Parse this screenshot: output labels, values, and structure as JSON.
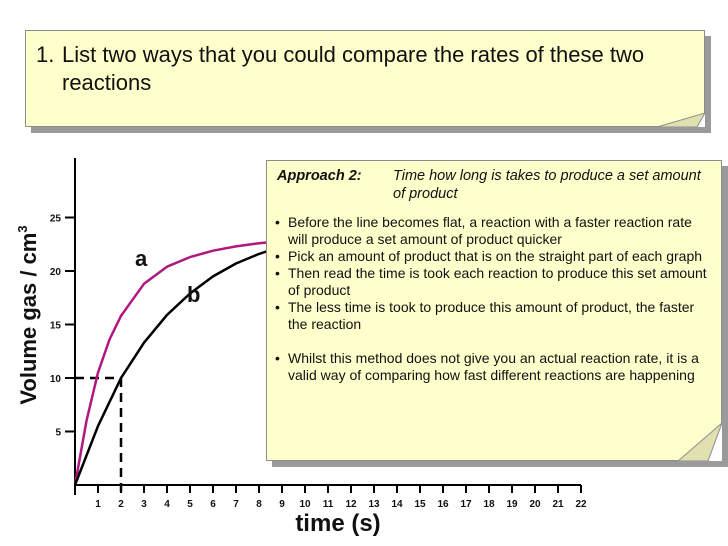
{
  "question": {
    "number": "1.",
    "text": "List two ways that you could compare the rates of these two reactions"
  },
  "approach": {
    "label": "Approach 2:",
    "title": "Time how long is takes to produce a set amount of product",
    "bullets": [
      "Before the line becomes flat, a reaction with a faster reaction rate will produce a set amount of product quicker",
      "Pick an amount of product that is on the straight part of each graph",
      "Then read the time is took each reaction to produce this set amount of product",
      "The less time is took to produce this amount of product, the faster the reaction",
      "Whilst this method does not give you an actual reaction rate, it is a valid way of comparing how fast different reactions are happening"
    ]
  },
  "chart_data": {
    "type": "line",
    "xlabel": "time (s)",
    "ylabel": "Volume gas / cm",
    "ylabel_superscript": "3",
    "x_ticks": [
      "1",
      "2",
      "3",
      "4",
      "5",
      "6",
      "7",
      "8",
      "9",
      "10",
      "11",
      "12",
      "13",
      "14",
      "15",
      "16",
      "17",
      "18",
      "19",
      "20",
      "21",
      "22"
    ],
    "y_ticks": [
      "5",
      "10",
      "15",
      "20",
      "25"
    ],
    "xlim": [
      0,
      22
    ],
    "ylim": [
      0,
      27
    ],
    "series": [
      {
        "name": "a",
        "color": "#b0177f",
        "x": [
          0,
          0.5,
          1,
          1.5,
          2,
          3,
          4,
          5,
          6,
          7,
          8,
          9
        ],
        "y": [
          0,
          6,
          10.5,
          13.6,
          15.8,
          18.8,
          20.4,
          21.3,
          21.9,
          22.3,
          22.6,
          22.8
        ]
      },
      {
        "name": "b",
        "color": "#000000",
        "x": [
          0,
          1,
          2,
          3,
          4,
          5,
          6,
          7,
          8,
          9
        ],
        "y": [
          0,
          5.5,
          10,
          13.3,
          15.9,
          17.9,
          19.5,
          20.7,
          21.6,
          22.3
        ]
      }
    ],
    "guide": {
      "y": 10,
      "x_a": 0.82,
      "x_b": 2
    }
  }
}
